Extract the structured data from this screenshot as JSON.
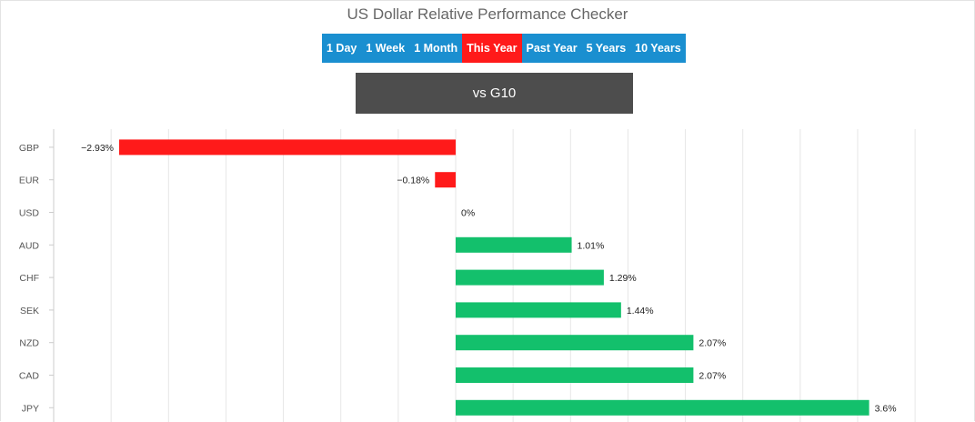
{
  "header": {
    "title": "US Dollar Relative Performance Checker"
  },
  "tabs": [
    {
      "label": "1 Day",
      "active": false
    },
    {
      "label": "1 Week",
      "active": false
    },
    {
      "label": "1 Month",
      "active": false
    },
    {
      "label": "This Year",
      "active": true
    },
    {
      "label": "Past Year",
      "active": false
    },
    {
      "label": "5 Years",
      "active": false
    },
    {
      "label": "10 Years",
      "active": false
    }
  ],
  "group_button": {
    "label": "vs G10"
  },
  "colors": {
    "tab_bar": "#1a8fd0",
    "tab_active": "#ff1a1a",
    "negative": "#ff1a1a",
    "positive": "#13c06c",
    "group_button": "#4d4d4d"
  },
  "chart_data": {
    "type": "bar",
    "orientation": "horizontal",
    "title": "",
    "xlabel": "",
    "ylabel": "",
    "grid": true,
    "categories": [
      "GBP",
      "EUR",
      "USD",
      "AUD",
      "CHF",
      "SEK",
      "NZD",
      "CAD",
      "JPY"
    ],
    "values": [
      -2.93,
      -0.18,
      0,
      1.01,
      1.29,
      1.44,
      2.07,
      2.07,
      3.6
    ],
    "labels": [
      "−2.93%",
      "−0.18%",
      "0%",
      "1.01%",
      "1.29%",
      "1.44%",
      "2.07%",
      "2.07%",
      "3.6%"
    ],
    "xlim": [
      -3,
      4.5
    ]
  }
}
